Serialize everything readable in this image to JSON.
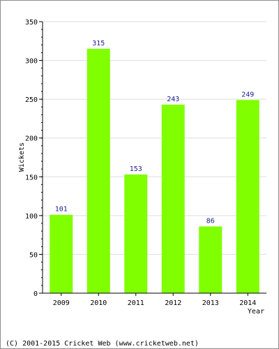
{
  "chart_data": {
    "type": "bar",
    "categories": [
      "2009",
      "2010",
      "2011",
      "2012",
      "2013",
      "2014"
    ],
    "values": [
      101,
      315,
      153,
      243,
      86,
      249
    ],
    "data_labels": [
      "101",
      "315",
      "153",
      "243",
      "86",
      "249"
    ],
    "xlabel": "Year",
    "ylabel": "Wickets",
    "ylim": [
      0,
      350
    ],
    "yticks": [
      0,
      50,
      100,
      150,
      200,
      250,
      300,
      350
    ],
    "ytick_labels": [
      "0",
      "50",
      "100",
      "150",
      "200",
      "250",
      "300",
      "350"
    ],
    "grid": true,
    "legend": "none"
  },
  "colors": {
    "bar": "#80ff00",
    "data_label": "#1a1a8c",
    "grid": "#dddddd",
    "axis": "#000000"
  },
  "footer": {
    "text": "(C) 2001-2015 Cricket Web (www.cricketweb.net)"
  }
}
